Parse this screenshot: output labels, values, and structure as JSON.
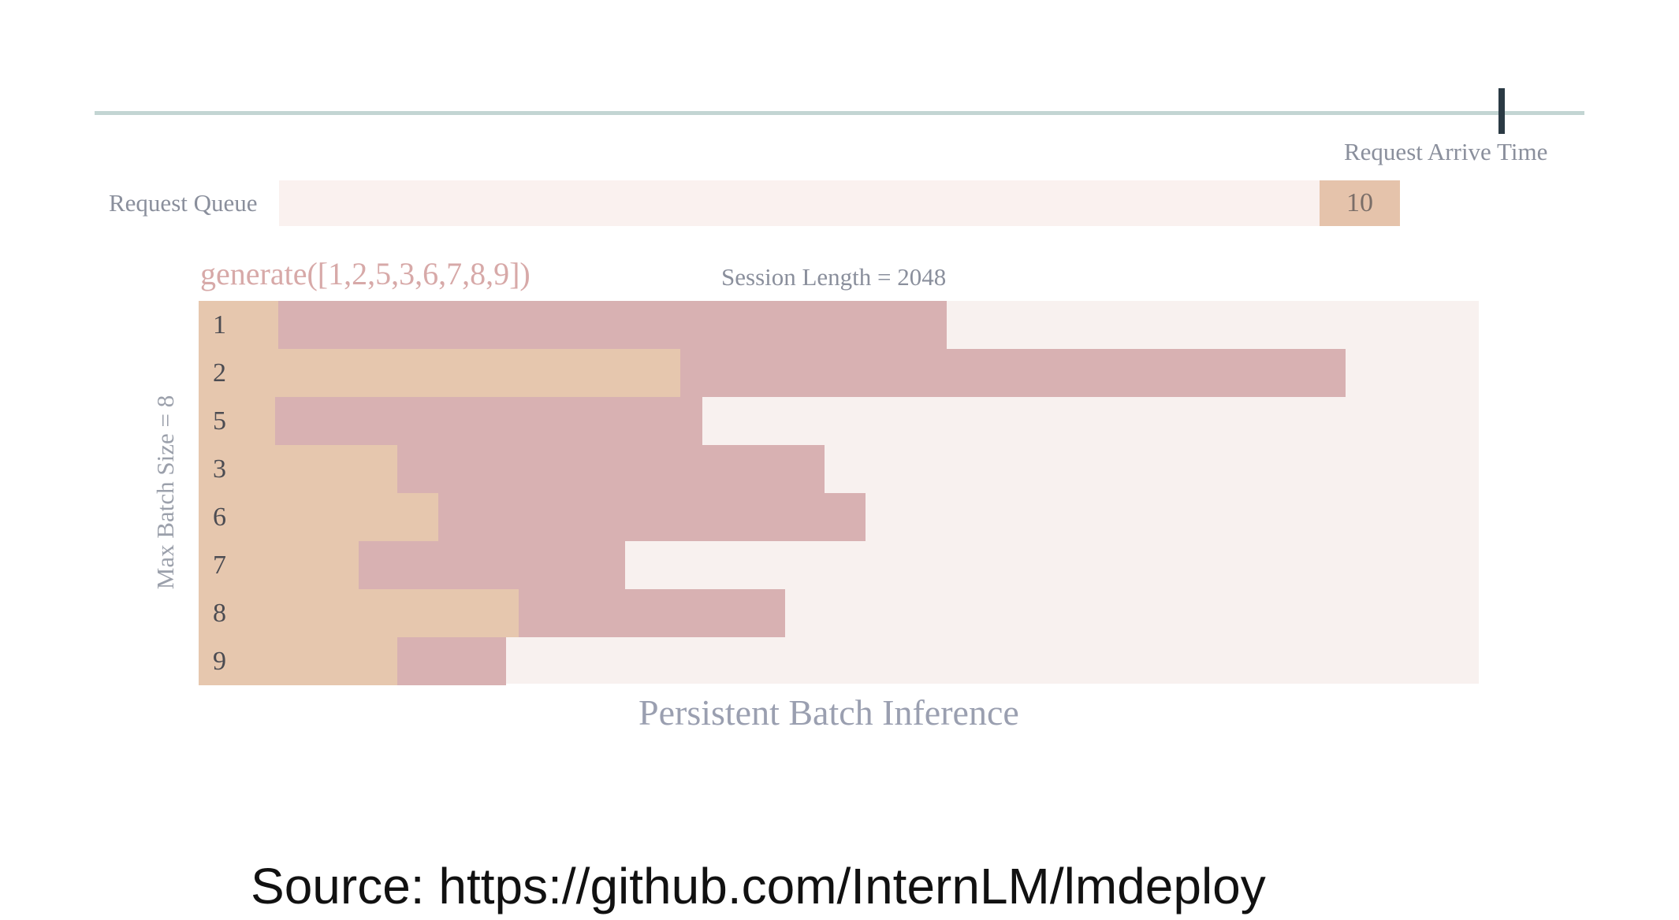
{
  "timeline": {
    "label": "Request Arrive Time"
  },
  "queue": {
    "label": "Request Queue",
    "items": [
      "10"
    ]
  },
  "code_call": "generate([1,2,5,3,6,7,8,9])",
  "session_length": "Session Length = 2048",
  "batch_axis_label": "Max Batch Size = 8",
  "caption": "Persistent Batch Inference",
  "source": "Source: https://github.com/InternLM/lmdeploy",
  "legend_colors": {
    "prefill": "#e6c7ae",
    "decode": "#d8b1b2",
    "empty": "#f8f1ef"
  },
  "slots": [
    {
      "id": "1",
      "prefill_end": 0.062,
      "decode_end": 0.584
    },
    {
      "id": "2",
      "prefill_end": 0.376,
      "decode_end": 0.896
    },
    {
      "id": "5",
      "prefill_end": 0.06,
      "decode_end": 0.394
    },
    {
      "id": "3",
      "prefill_end": 0.155,
      "decode_end": 0.489
    },
    {
      "id": "6",
      "prefill_end": 0.187,
      "decode_end": 0.521
    },
    {
      "id": "7",
      "prefill_end": 0.125,
      "decode_end": 0.333
    },
    {
      "id": "8",
      "prefill_end": 0.25,
      "decode_end": 0.458
    },
    {
      "id": "9",
      "prefill_end": 0.155,
      "decode_end": 0.24
    }
  ]
}
